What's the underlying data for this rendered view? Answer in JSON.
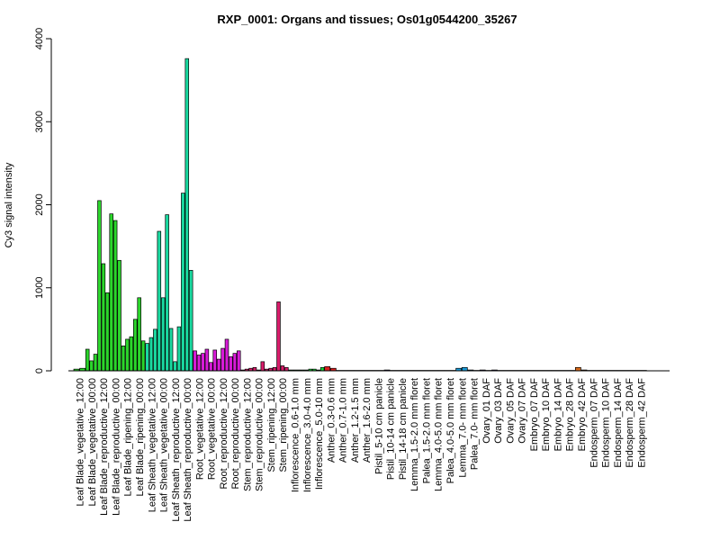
{
  "chart_data": {
    "type": "bar",
    "title": "RXP_0001: Organs and tissues; Os01g0544200_35267",
    "xlabel": "",
    "ylabel": "Cy3 signal intensity",
    "ylim": [
      0,
      4000
    ],
    "yticks": [
      0,
      1000,
      2000,
      3000,
      4000
    ],
    "grid": false,
    "legend": "none",
    "x_tick_labels": [
      "Leaf Blade_vegetative_12:00",
      "Leaf Blade_vegetative_00:00",
      "Leaf Blade_reproductive_12:00",
      "Leaf Blade_reproductive_00:00",
      "Leaf Blade_ripening_12:00",
      "Leaf Blade_ripening_00:00",
      "Leaf Sheath_vegetative_12:00",
      "Leaf Sheath_vegetative_00:00",
      "Leaf Sheath_reproductive_12:00",
      "Leaf Sheath_reproductive_00:00",
      "Root_vegetative_12:00",
      "Root_vegetative_00:00",
      "Root_reproductive_12:00",
      "Root_reproductive_00:00",
      "Stem_reproductive_12:00",
      "Stem_reproductive_00:00",
      "Stem_ripening_12:00",
      "Stem_ripening_00:00",
      "Inflorescence_0.6-1.0 mm",
      "Inflorescence_3.0-4.0 mm",
      "Inflorescence_5.0-10 mm",
      "Anther_0.3-0.6 mm",
      "Anther_0.7-1.0 mm",
      "Anther_1.2-1.5 mm",
      "Anther_1.6-2.0 mm",
      "Pistil_5-10 cm panicle",
      "Pistil_10-14 cm panicle",
      "Pistil_14-18 cm panicle",
      "Lemma_1.5-2.0 mm floret",
      "Palea_1.5-2.0 mm floret",
      "Lemma_4.0-5.0 mm floret",
      "Palea_4.0-5.0 mm floret",
      "Lemma_7.0- mm floret",
      "Palea_7.0- mm floret",
      "Ovary_01 DAF",
      "Ovary_03 DAF",
      "Ovary_05 DAF",
      "Ovary_07 DAF",
      "Embryo_07 DAF",
      "Embryo_10 DAF",
      "Embryo_14 DAF",
      "Embryo_28 DAF",
      "Embryo_42 DAF",
      "Endosperm_07 DAF",
      "Endosperm_10 DAF",
      "Endosperm_14 DAF",
      "Endosperm_28 DAF",
      "Endosperm_42 DAF"
    ],
    "groups": [
      {
        "color": "#2bd62b",
        "values": [
          20,
          30
        ]
      },
      {
        "color": "#2bd62b",
        "values": [
          260,
          120,
          200
        ]
      },
      {
        "color": "#2bd62b",
        "values": [
          2050,
          1290,
          940
        ]
      },
      {
        "color": "#2bd62b",
        "values": [
          1890,
          1810,
          1330
        ]
      },
      {
        "color": "#2bd62b",
        "values": [
          300,
          380,
          410
        ]
      },
      {
        "color": "#2bd62b",
        "values": [
          620,
          880,
          360
        ]
      },
      {
        "color": "#1ad9a0",
        "values": [
          330,
          400,
          500
        ]
      },
      {
        "color": "#1ad9a0",
        "values": [
          1680,
          880,
          1880
        ]
      },
      {
        "color": "#1ad9a0",
        "values": [
          510,
          110,
          530
        ]
      },
      {
        "color": "#1ad9a0",
        "values": [
          2140,
          3760,
          1210
        ]
      },
      {
        "color": "#d81bd8",
        "values": [
          240,
          190,
          210
        ]
      },
      {
        "color": "#d81bd8",
        "values": [
          260,
          100,
          250
        ]
      },
      {
        "color": "#d81bd8",
        "values": [
          140,
          270,
          380
        ]
      },
      {
        "color": "#d81bd8",
        "values": [
          170,
          210,
          240
        ]
      },
      {
        "color": "#d81b6a",
        "values": [
          10,
          20,
          30
        ]
      },
      {
        "color": "#d81b6a",
        "values": [
          40,
          10,
          110
        ]
      },
      {
        "color": "#d81b6a",
        "values": [
          20,
          30,
          40
        ]
      },
      {
        "color": "#d81b6a",
        "values": [
          830,
          60,
          40
        ]
      },
      {
        "color": "#1ad93a",
        "values": [
          10,
          10
        ]
      },
      {
        "color": "#1ad93a",
        "values": [
          10,
          10,
          20
        ]
      },
      {
        "color": "#1ad93a",
        "values": [
          20,
          10,
          40
        ]
      },
      {
        "color": "#d82020",
        "values": [
          50,
          30
        ]
      },
      {
        "color": "#d82020",
        "values": [
          5,
          5
        ]
      },
      {
        "color": "#d82020",
        "values": [
          5,
          5
        ]
      },
      {
        "color": "#d82020",
        "values": [
          5,
          5
        ]
      },
      {
        "color": "#5a4bd8",
        "values": [
          5,
          5
        ]
      },
      {
        "color": "#5a4bd8",
        "values": [
          10,
          5
        ]
      },
      {
        "color": "#5a4bd8",
        "values": [
          5,
          5
        ]
      },
      {
        "color": "#1a9bd8",
        "values": [
          5,
          5
        ]
      },
      {
        "color": "#1a9bd8",
        "values": [
          5,
          5
        ]
      },
      {
        "color": "#1a9bd8",
        "values": [
          5,
          5
        ]
      },
      {
        "color": "#1a9bd8",
        "values": [
          5,
          5
        ]
      },
      {
        "color": "#1a9bd8",
        "values": [
          30,
          40
        ]
      },
      {
        "color": "#1a9bd8",
        "values": [
          10,
          5
        ]
      },
      {
        "color": "#5a4bd8",
        "values": [
          10,
          5
        ]
      },
      {
        "color": "#5a4bd8",
        "values": [
          10,
          5
        ]
      },
      {
        "color": "#5a4bd8",
        "values": [
          5,
          5
        ]
      },
      {
        "color": "#5a4bd8",
        "values": [
          5,
          5
        ]
      },
      {
        "color": "#d8a21a",
        "values": [
          5,
          5
        ]
      },
      {
        "color": "#d8a21a",
        "values": [
          5,
          5
        ]
      },
      {
        "color": "#d8a21a",
        "values": [
          5,
          5
        ]
      },
      {
        "color": "#d8a21a",
        "values": [
          5,
          5
        ]
      },
      {
        "color": "#d86a1a",
        "values": [
          40,
          10
        ]
      },
      {
        "color": "#d8a21a",
        "values": [
          5,
          5
        ]
      },
      {
        "color": "#d8a21a",
        "values": [
          5,
          5
        ]
      },
      {
        "color": "#d8a21a",
        "values": [
          5,
          5
        ]
      },
      {
        "color": "#d8a21a",
        "values": [
          5,
          5
        ]
      },
      {
        "color": "#d8a21a",
        "values": [
          5,
          5
        ]
      }
    ]
  }
}
